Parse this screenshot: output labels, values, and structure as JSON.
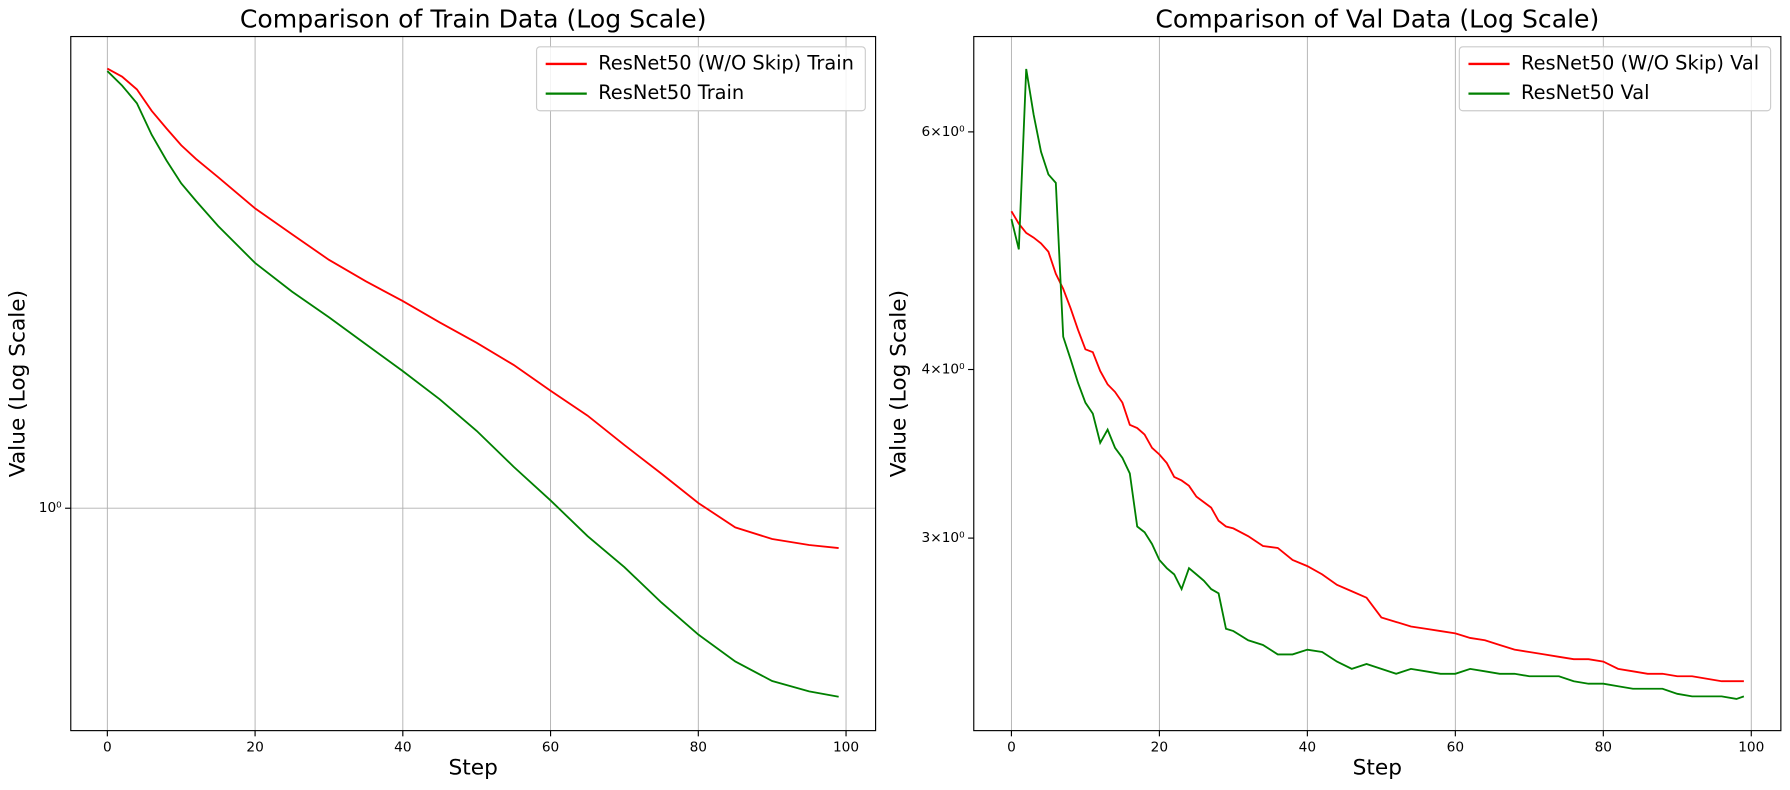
{
  "chart_data": [
    {
      "type": "line",
      "title": "Comparison of Train Data (Log Scale)",
      "x_label": "Step",
      "y_label": "Value (Log Scale)",
      "y_scale": "log",
      "grid": "both",
      "legend": "upper right",
      "x": [
        0,
        2,
        4,
        6,
        8,
        10,
        12,
        15,
        20,
        25,
        30,
        35,
        40,
        45,
        50,
        55,
        60,
        65,
        70,
        75,
        80,
        85,
        90,
        95,
        99
      ],
      "series": [
        {
          "name": "ResNet50 (W/O Skip) Train",
          "color": "#ff0000",
          "values": [
            5.28,
            5.12,
            4.88,
            4.5,
            4.21,
            3.95,
            3.75,
            3.5,
            3.11,
            2.82,
            2.56,
            2.36,
            2.19,
            2.02,
            1.87,
            1.72,
            1.56,
            1.42,
            1.27,
            1.14,
            1.02,
            0.93,
            0.89,
            0.87,
            0.86
          ]
        },
        {
          "name": "ResNet50 Train",
          "color": "#008000",
          "values": [
            5.23,
            4.95,
            4.63,
            4.11,
            3.73,
            3.42,
            3.2,
            2.91,
            2.53,
            2.27,
            2.06,
            1.86,
            1.68,
            1.51,
            1.34,
            1.17,
            1.03,
            0.9,
            0.8,
            0.7,
            0.62,
            0.56,
            0.52,
            0.5,
            0.49
          ]
        }
      ],
      "xlim": [
        -4.95,
        104.0
      ],
      "xticks": [
        0,
        20,
        40,
        60,
        80,
        100
      ],
      "ylim": [
        0.431,
        5.96
      ],
      "yticks": [
        {
          "value": 1,
          "label": "10⁰"
        }
      ]
    },
    {
      "type": "line",
      "title": "Comparison of Val Data (Log Scale)",
      "x_label": "Step",
      "y_label": "Value (Log Scale)",
      "y_scale": "log",
      "grid": "x",
      "legend": "upper right",
      "x": [
        0,
        1,
        2,
        3,
        4,
        5,
        6,
        7,
        8,
        9,
        10,
        11,
        12,
        13,
        14,
        15,
        16,
        17,
        18,
        19,
        20,
        21,
        22,
        23,
        24,
        25,
        26,
        27,
        28,
        29,
        30,
        32,
        34,
        36,
        38,
        40,
        42,
        44,
        46,
        48,
        50,
        52,
        54,
        56,
        58,
        60,
        62,
        64,
        66,
        68,
        70,
        72,
        74,
        76,
        78,
        80,
        82,
        84,
        86,
        88,
        90,
        92,
        94,
        96,
        98,
        99
      ],
      "series": [
        {
          "name": "ResNet50 (W/O Skip) Val",
          "color": "#ff0000",
          "values": [
            5.24,
            5.13,
            5.05,
            5.01,
            4.96,
            4.89,
            4.71,
            4.59,
            4.44,
            4.28,
            4.14,
            4.12,
            3.99,
            3.9,
            3.85,
            3.78,
            3.64,
            3.62,
            3.58,
            3.5,
            3.46,
            3.41,
            3.33,
            3.31,
            3.28,
            3.22,
            3.19,
            3.16,
            3.09,
            3.06,
            3.05,
            3.01,
            2.96,
            2.95,
            2.89,
            2.86,
            2.82,
            2.77,
            2.74,
            2.71,
            2.62,
            2.6,
            2.58,
            2.57,
            2.56,
            2.55,
            2.53,
            2.52,
            2.5,
            2.48,
            2.47,
            2.46,
            2.45,
            2.44,
            2.44,
            2.43,
            2.4,
            2.39,
            2.38,
            2.38,
            2.37,
            2.37,
            2.36,
            2.35,
            2.35,
            2.35
          ]
        },
        {
          "name": "ResNet50 Val",
          "color": "#008000",
          "values": [
            5.17,
            4.91,
            6.68,
            6.18,
            5.8,
            5.58,
            5.5,
            4.23,
            4.07,
            3.91,
            3.78,
            3.71,
            3.53,
            3.61,
            3.5,
            3.44,
            3.35,
            3.06,
            3.03,
            2.97,
            2.89,
            2.85,
            2.82,
            2.75,
            2.85,
            2.82,
            2.79,
            2.75,
            2.73,
            2.57,
            2.56,
            2.52,
            2.5,
            2.46,
            2.46,
            2.48,
            2.47,
            2.43,
            2.4,
            2.42,
            2.4,
            2.38,
            2.4,
            2.39,
            2.38,
            2.38,
            2.4,
            2.39,
            2.38,
            2.38,
            2.37,
            2.37,
            2.37,
            2.35,
            2.34,
            2.34,
            2.33,
            2.32,
            2.32,
            2.32,
            2.3,
            2.29,
            2.29,
            2.29,
            2.28,
            2.29
          ]
        }
      ],
      "xlim": [
        -5.09,
        104.0
      ],
      "xticks": [
        0,
        20,
        40,
        60,
        80,
        100
      ],
      "ylim": [
        2.16,
        7.06
      ],
      "yticks": [
        {
          "value": 6,
          "label": "6×10⁰"
        },
        {
          "value": 4,
          "label": "4×10⁰"
        },
        {
          "value": 3,
          "label": "3×10⁰"
        }
      ]
    }
  ]
}
